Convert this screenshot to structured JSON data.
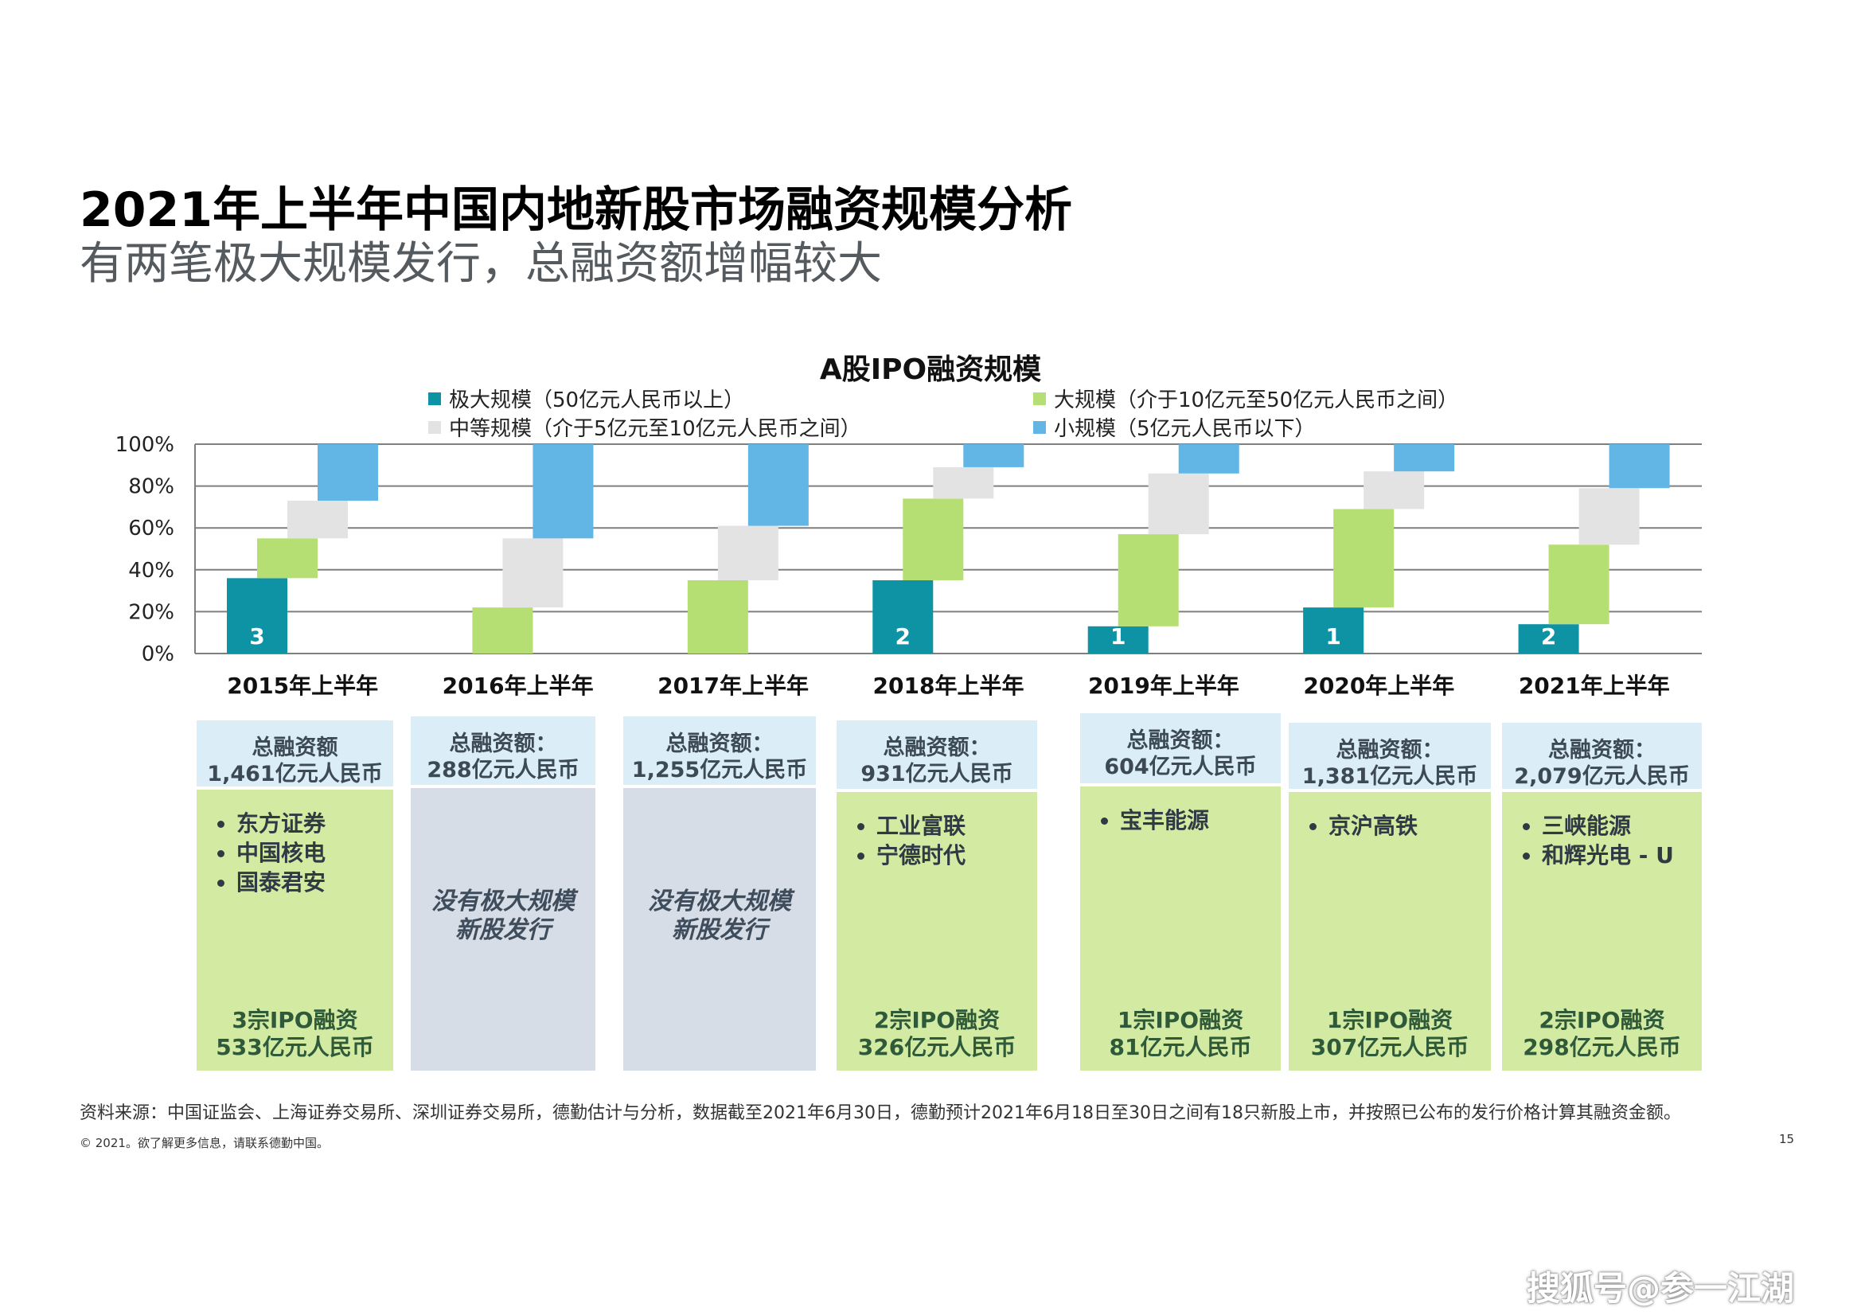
{
  "title": "2021年上半年中国内地新股市场融资规模分析",
  "subtitle": "有两笔极大规模发行，总融资额增幅较大",
  "colors": {
    "extra_large": "#0e93a5",
    "large": "#b5df72",
    "medium": "#e3e3e3",
    "small": "#62b6e6",
    "gridline": "#7f7f7f",
    "box_green": "#d2eaa2",
    "box_gray": "#d6dde6",
    "box_head": "#dbeef8"
  },
  "chart_data": {
    "type": "bar",
    "subtype": "floating-stacked",
    "title": "A股IPO融资规模",
    "categories": [
      "2015年上半年",
      "2016年上半年",
      "2017年上半年",
      "2018年上半年",
      "2019年上半年",
      "2020年上半年",
      "2021年上半年"
    ],
    "series": [
      {
        "name": "极大规模（50亿元人民币以上）",
        "values": [
          36,
          0,
          0,
          35,
          13,
          22,
          14
        ]
      },
      {
        "name": "大规模（介于10亿元至50亿元人民币之间）",
        "values": [
          19,
          22,
          35,
          39,
          44,
          47,
          38
        ]
      },
      {
        "name": "中等规模（介于5亿元至10亿元人民币之间）",
        "values": [
          18,
          33,
          26,
          15,
          29,
          18,
          27
        ]
      },
      {
        "name": "小规模（5亿元人民币以下）",
        "values": [
          27,
          45,
          39,
          11,
          14,
          13,
          21
        ]
      }
    ],
    "bar_labels": [
      "3",
      "",
      "",
      "2",
      "1",
      "1",
      "2"
    ],
    "yticks": [
      "0%",
      "20%",
      "40%",
      "60%",
      "80%",
      "100%"
    ],
    "ylim": [
      0,
      100
    ],
    "grid": true,
    "legend": "top"
  },
  "boxes": [
    {
      "head": "总融资额\n1,461亿元人民币",
      "type": "green",
      "items": [
        "东方证券",
        "中国核电",
        "国泰君安"
      ],
      "summary": "3宗IPO融资\n533亿元人民币"
    },
    {
      "head": "总融资额：\n288亿元人民币",
      "type": "gray",
      "none_text": "没有极大规模\n新股发行"
    },
    {
      "head": "总融资额：\n1,255亿元人民币",
      "type": "gray",
      "none_text": "没有极大规模\n新股发行"
    },
    {
      "head": "总融资额：\n931亿元人民币",
      "type": "green",
      "items": [
        "工业富联",
        "宁德时代"
      ],
      "summary": "2宗IPO融资\n326亿元人民币"
    },
    {
      "head": "总融资额：\n604亿元人民币",
      "type": "green",
      "items": [
        "宝丰能源"
      ],
      "summary": "1宗IPO融资\n81亿元人民币"
    },
    {
      "head": "总融资额：\n1,381亿元人民币",
      "type": "green",
      "items": [
        "京沪高铁"
      ],
      "summary": "1宗IPO融资\n307亿元人民币"
    },
    {
      "head": "总融资额：\n2,079亿元人民币",
      "type": "green",
      "items": [
        "三峡能源",
        "和辉光电 - U"
      ],
      "summary": "2宗IPO融资\n298亿元人民币"
    }
  ],
  "footer": {
    "source": "资料来源：中国证监会、上海证券交易所、深圳证券交易所，德勤估计与分析，数据截至2021年6月30日，德勤预计2021年6月18日至30日之间有18只新股上市，并按照已公布的发行价格计算其融资金额。",
    "copyright": "© 2021。欲了解更多信息，请联系德勤中国。",
    "page_number": "15"
  },
  "watermark": "搜狐号@参一江湖"
}
